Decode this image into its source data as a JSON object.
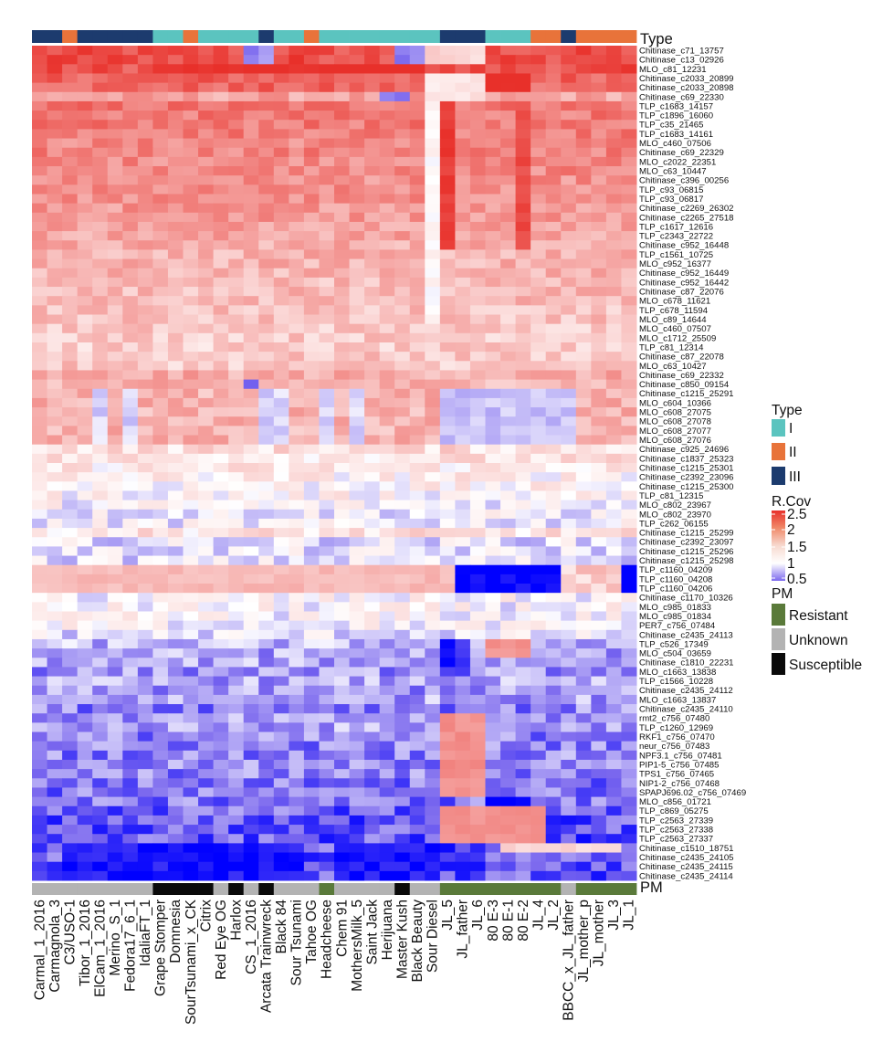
{
  "chart_data": {
    "type": "heatmap",
    "title": "",
    "xlabel": "",
    "ylabel": "",
    "annotation_tracks": {
      "top": {
        "name": "Type"
      },
      "bottom": {
        "name": "PM"
      }
    },
    "columns": [
      "Carmal_1_2016",
      "Carmagnola_3",
      "C3/USO-1",
      "Tibor_1_2016",
      "ElCam_1_2016",
      "Merino_S_1",
      "Fedora17_6_1",
      "IdaliaFT_1",
      "Grape Stomper",
      "Domnesia",
      "SourTsunami_x_CK",
      "Citrix",
      "Red Eye OG",
      "Harlox",
      "CS_1_2016",
      "Arcata Trainwreck",
      "Black 84",
      "Sour Tsunami",
      "Tahoe OG",
      "Headcheese",
      "Chem 91",
      "MothersMilk_5",
      "Saint Jack",
      "Herijuana",
      "Master Kush",
      "Black Beauty",
      "Sour Diesel",
      "JL_5",
      "JL_father",
      "JL_6",
      "80 E-3",
      "80 E-1",
      "80 E-2",
      "JL_4",
      "JL_2",
      "BBCC_x_JL_father",
      "JL_mother_p",
      "JL_mother",
      "JL_3",
      "JL_1"
    ],
    "column_type": [
      "III",
      "III",
      "II",
      "III",
      "III",
      "III",
      "III",
      "III",
      "I",
      "I",
      "II",
      "I",
      "I",
      "I",
      "I",
      "III",
      "I",
      "I",
      "II",
      "I",
      "I",
      "I",
      "I",
      "I",
      "I",
      "I",
      "I",
      "III",
      "III",
      "III",
      "I",
      "I",
      "I",
      "II",
      "II",
      "III",
      "II",
      "II",
      "II",
      "II"
    ],
    "column_pm": [
      "Unknown",
      "Unknown",
      "Unknown",
      "Unknown",
      "Unknown",
      "Unknown",
      "Unknown",
      "Unknown",
      "Susceptible",
      "Susceptible",
      "Susceptible",
      "Susceptible",
      "Unknown",
      "Susceptible",
      "Unknown",
      "Susceptible",
      "Unknown",
      "Unknown",
      "Unknown",
      "Resistant",
      "Unknown",
      "Unknown",
      "Unknown",
      "Unknown",
      "Susceptible",
      "Unknown",
      "Unknown",
      "Resistant",
      "Resistant",
      "Resistant",
      "Resistant",
      "Resistant",
      "Resistant",
      "Resistant",
      "Resistant",
      "Unknown",
      "Resistant",
      "Resistant",
      "Resistant",
      "Resistant"
    ],
    "rows": [
      "Chitinase_c71_13757",
      "Chitinase_c13_02926",
      "MLO_c81_12231",
      "Chitinase_c2033_20899",
      "Chitinase_c2033_20898",
      "Chitinase_c69_22330",
      "TLP_c1683_14157",
      "TLP_c1896_16060",
      "TLP_c35_21465",
      "TLP_c1683_14161",
      "MLO_c460_07506",
      "Chitinase_c69_22329",
      "MLO_c2022_22351",
      "MLO_c63_10447",
      "Chitinase_c396_00256",
      "TLP_c93_06815",
      "TLP_c93_06817",
      "Chitinase_c2269_26302",
      "Chitinase_c2265_27518",
      "TLP_c1617_12616",
      "TLP_c2343_22722",
      "Chitinase_c952_16448",
      "TLP_c1561_10725",
      "MLO_c952_16377",
      "Chitinase_c952_16449",
      "Chitinase_c952_16442",
      "Chitinase_c87_22076",
      "MLO_c678_11621",
      "TLP_c678_11594",
      "MLO_c89_14644",
      "MLO_c460_07507",
      "MLO_c1712_25509",
      "TLP_c81_12314",
      "Chitinase_c87_22078",
      "MLO_c63_10427",
      "Chitinase_c69_22332",
      "Chitinase_c850_09154",
      "Chitinase_c1215_25291",
      "MLO_c604_10366",
      "MLO_c608_27075",
      "MLO_c608_27078",
      "MLO_c608_27077",
      "MLO_c608_27076",
      "Chitinase_c925_24696",
      "Chitinase_c1837_25323",
      "Chitinase_c1215_25301",
      "Chitinase_c2392_23096",
      "Chitinase_c1215_25300",
      "TLP_c81_12315",
      "MLO_c802_23967",
      "MLO_c802_23970",
      "TLP_c262_06155",
      "Chitinase_c1215_25299",
      "Chitinase_c2392_23097",
      "Chitinase_c1215_25296",
      "Chitinase_c1215_25298",
      "TLP_c1160_04209",
      "TLP_c1160_04208",
      "TLP_c1160_04206",
      "Chitinase_c1170_10326",
      "MLO_c985_01833",
      "MLO_c985_01834",
      "PER7_c756_07484",
      "Chitinase_c2435_24113",
      "TLP_c526_17349",
      "MLO_c504_03659",
      "Chitinase_c1810_22231",
      "MLO_c1663_13838",
      "TLP_c1566_10228",
      "Chitinase_c2435_24112",
      "MLO_c1663_13837",
      "Chitinase_c2435_24110",
      "rmt2_c756_07480",
      "TLP_c1260_12969",
      "RKF1_c756_07470",
      "neur_c756_07483",
      "NPF3.1_c756_07481",
      "PIP1-5_c756_07485",
      "TPS1_c756_07465",
      "NIP1-2_c756_07468",
      "SPAPJ696.02_c756_07469",
      "MLO_c856_01721",
      "TLP_c869_05275",
      "TLP_c2563_27339",
      "TLP_c2563_27338",
      "TLP_c2563_27337",
      "Chitinase_c1510_18751",
      "Chitinase_c2435_24105",
      "Chitinase_c2435_24115",
      "Chitinase_c2435_24114"
    ],
    "row_means": [
      2.25,
      2.3,
      2.25,
      2.15,
      2.1,
      1.65,
      2.0,
      1.95,
      1.95,
      1.95,
      1.85,
      1.9,
      1.85,
      1.85,
      1.8,
      1.8,
      1.8,
      1.75,
      1.75,
      1.7,
      1.65,
      1.6,
      1.55,
      1.55,
      1.55,
      1.5,
      1.5,
      1.5,
      1.45,
      1.45,
      1.4,
      1.4,
      1.35,
      1.4,
      1.4,
      1.6,
      1.55,
      1.55,
      1.6,
      1.55,
      1.55,
      1.55,
      1.55,
      1.25,
      1.2,
      1.15,
      1.1,
      1.05,
      1.05,
      1.0,
      0.95,
      0.95,
      1.2,
      0.9,
      0.9,
      0.9,
      1.35,
      1.35,
      1.35,
      1.0,
      1.0,
      1.0,
      1.0,
      0.9,
      0.75,
      0.7,
      0.7,
      0.65,
      0.7,
      0.65,
      0.7,
      0.6,
      0.65,
      0.7,
      0.6,
      0.6,
      0.6,
      0.6,
      0.6,
      0.55,
      0.55,
      0.55,
      0.5,
      0.45,
      0.45,
      0.45,
      0.45,
      0.45,
      0.45,
      0.45
    ],
    "patterns": [
      {
        "rows": [
          0,
          1
        ],
        "cols": [
          26,
          27,
          28,
          29
        ],
        "value": 1.3
      },
      {
        "rows": [
          2
        ],
        "cols": [
          8,
          9,
          10,
          11,
          12,
          13,
          14,
          15,
          16,
          17,
          18,
          19,
          20,
          21,
          22,
          23,
          24,
          25
        ],
        "value": 2.5
      },
      {
        "rows": [
          3,
          4
        ],
        "cols": [
          30,
          31,
          32
        ],
        "value": 2.5
      },
      {
        "rows": [
          3,
          4,
          5
        ],
        "cols": [
          26,
          27,
          28,
          29
        ],
        "value": 1.2
      },
      {
        "rows": [
          0,
          1
        ],
        "cols": [
          14,
          15,
          24,
          25
        ],
        "value": 0.6
      },
      {
        "rows": [
          5
        ],
        "cols": [
          23,
          24
        ],
        "value": 0.5
      },
      {
        "rows": [
          6,
          7,
          8,
          9,
          10,
          11,
          12,
          13,
          14,
          15,
          16,
          17,
          18,
          19,
          20,
          21
        ],
        "cols": [
          27
        ],
        "value": 2.4
      },
      {
        "rows": [
          6,
          7,
          8,
          9,
          10,
          11,
          12,
          13,
          14,
          15,
          16,
          17,
          18,
          19,
          20,
          21,
          22,
          23,
          24,
          25,
          26,
          27,
          28,
          29
        ],
        "cols": [
          26
        ],
        "value": 1.05
      },
      {
        "rows": [
          6,
          7,
          8,
          9,
          10,
          11,
          12,
          13,
          14,
          15,
          16,
          17,
          18,
          19,
          20,
          21
        ],
        "cols": [
          32
        ],
        "value": 2.3
      },
      {
        "rows": [
          37,
          38,
          39,
          40,
          41,
          42
        ],
        "cols": [
          4,
          6,
          15,
          16,
          19,
          21
        ],
        "value": 0.85
      },
      {
        "rows": [
          37,
          38,
          39,
          40,
          41,
          42
        ],
        "cols": [
          27,
          28,
          29,
          30,
          31,
          32,
          33,
          34,
          35
        ],
        "value": 0.8
      },
      {
        "rows": [
          36
        ],
        "cols": [
          14
        ],
        "value": 0.5
      },
      {
        "rows": [
          56,
          57,
          58
        ],
        "cols": [
          28,
          29,
          30,
          31,
          32,
          33,
          34
        ],
        "value": 0.2
      },
      {
        "rows": [
          56,
          57,
          58
        ],
        "cols": [
          39
        ],
        "value": 0.2
      },
      {
        "rows": [
          56,
          57,
          58
        ],
        "cols": [
          0,
          1,
          2,
          3,
          4,
          5,
          6,
          7,
          8,
          9,
          10,
          11,
          12,
          13,
          14,
          15,
          16,
          17,
          18,
          19,
          20,
          21,
          22,
          23,
          24,
          25,
          26,
          27
        ],
        "value": 1.5
      },
      {
        "rows": [
          64,
          65
        ],
        "cols": [
          30,
          31,
          32
        ],
        "value": 1.8
      },
      {
        "rows": [
          64,
          65,
          66,
          67
        ],
        "cols": [
          27,
          28
        ],
        "value": 0.3
      },
      {
        "rows": [
          72,
          73,
          74,
          75,
          76,
          77,
          78,
          79,
          80
        ],
        "cols": [
          27,
          28,
          29
        ],
        "value": 1.8
      },
      {
        "rows": [
          81,
          82
        ],
        "cols": [
          30,
          31,
          32
        ],
        "value": 0.2
      },
      {
        "rows": [
          82,
          83,
          84,
          85
        ],
        "cols": [
          27,
          28,
          29,
          30,
          31,
          32,
          33
        ],
        "value": 1.8
      },
      {
        "rows": [
          86,
          87,
          88,
          89
        ],
        "cols": [
          2,
          3,
          4,
          5,
          6,
          7,
          8,
          9,
          10,
          11,
          12,
          13,
          14,
          15,
          16,
          17
        ],
        "value": 0.25
      },
      {
        "rows": [
          86,
          87,
          88,
          89
        ],
        "cols": [
          20,
          21,
          22,
          23,
          24,
          25,
          26
        ],
        "value": 0.25
      },
      {
        "rows": [
          86
        ],
        "cols": [
          31,
          32,
          33,
          34,
          35,
          36,
          37,
          38
        ],
        "value": 1.3
      }
    ],
    "color_scale": {
      "low": "#7b68ee",
      "lowest": "#0000ff",
      "mid": "#ffffff",
      "high": "#e8302a",
      "min": 0.5,
      "max": 2.5
    },
    "legends": {
      "type": {
        "title": "Type",
        "entries": [
          {
            "label": "I",
            "color": "#5bc4bf"
          },
          {
            "label": "II",
            "color": "#e8733a"
          },
          {
            "label": "III",
            "color": "#1c3b6e"
          }
        ]
      },
      "rcov": {
        "title": "R.Cov",
        "ticks": [
          "2.5",
          "2",
          "1.5",
          "1",
          "0.5"
        ]
      },
      "pm": {
        "title": "PM",
        "entries": [
          {
            "label": "Resistant",
            "color": "#5a7a3a"
          },
          {
            "label": "Unknown",
            "color": "#b3b3b3"
          },
          {
            "label": "Susceptible",
            "color": "#0a0a0a"
          }
        ]
      }
    }
  }
}
